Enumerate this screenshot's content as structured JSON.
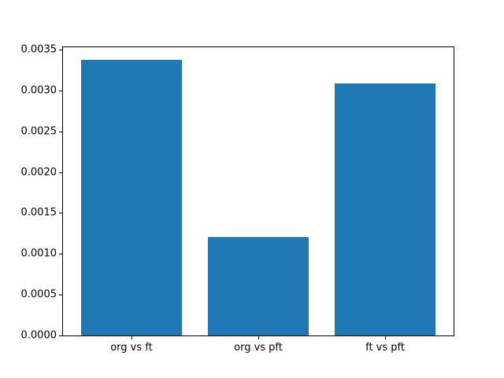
{
  "chart_data": {
    "type": "bar",
    "categories": [
      "org vs ft",
      "org vs pft",
      "ft vs pft"
    ],
    "values": [
      0.00338,
      0.00121,
      0.00309
    ],
    "title": "",
    "xlabel": "",
    "ylabel": "",
    "ylim": [
      0,
      0.00353
    ],
    "xlim": [
      -0.54,
      2.54
    ],
    "yticks": [
      0.0,
      0.0005,
      0.001,
      0.0015,
      0.002,
      0.0025,
      0.003,
      0.0035
    ],
    "ytick_labels": [
      "0.0000",
      "0.0005",
      "0.0010",
      "0.0015",
      "0.0020",
      "0.0025",
      "0.0030",
      "0.0035"
    ],
    "bar_width": 0.8,
    "bar_color": "#1f77b4",
    "background_color": "#ffffff",
    "spine_color": "#000000",
    "grid": false,
    "legend": false
  }
}
